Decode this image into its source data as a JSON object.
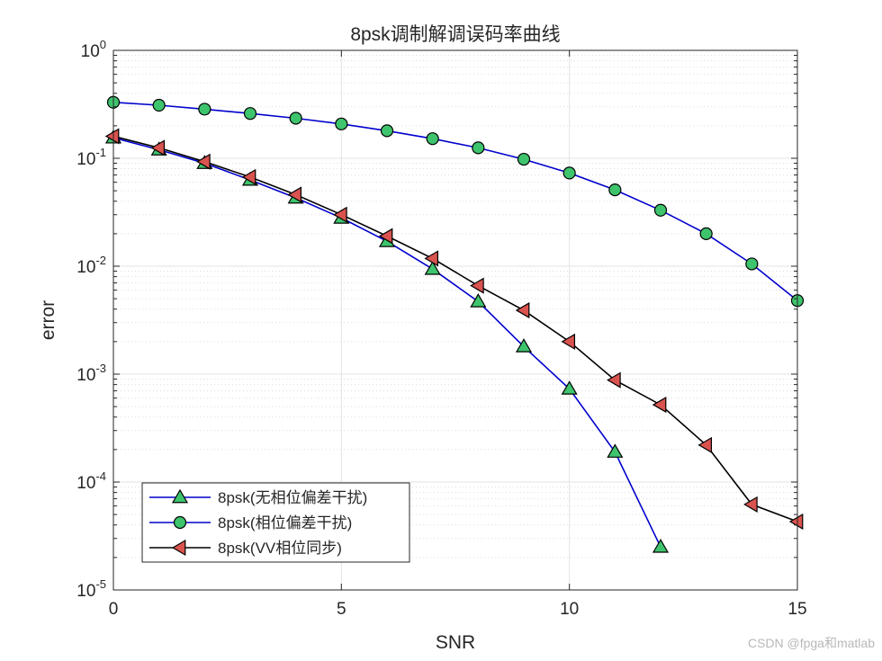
{
  "chart_data": {
    "type": "line",
    "title": "8psk调制解调误码率曲线",
    "xlabel": "SNR",
    "ylabel": "error",
    "xlim": [
      0,
      15
    ],
    "ylim": [
      1e-05,
      1
    ],
    "yscale": "log",
    "xticks": [
      "0",
      "5",
      "10",
      "15"
    ],
    "yticks": [
      {
        "base": "10",
        "exp": "-5"
      },
      {
        "base": "10",
        "exp": "-4"
      },
      {
        "base": "10",
        "exp": "-3"
      },
      {
        "base": "10",
        "exp": "-2"
      },
      {
        "base": "10",
        "exp": "-1"
      },
      {
        "base": "10",
        "exp": "0"
      }
    ],
    "grid": true,
    "legend_position": "bottom-left",
    "series": [
      {
        "name": "8psk(无相位偏差干扰)",
        "color": "#0000cd",
        "marker": "triangle-up",
        "marker_color": "#3ec46d",
        "x": [
          0,
          1,
          2,
          3,
          4,
          5,
          6,
          7,
          8,
          9,
          10,
          11,
          12
        ],
        "values": [
          0.155,
          0.12,
          0.09,
          0.063,
          0.043,
          0.028,
          0.017,
          0.0094,
          0.0047,
          0.0018,
          0.00073,
          0.00019,
          2.5e-05
        ]
      },
      {
        "name": "8psk(相位偏差干扰)",
        "color": "#0000cd",
        "marker": "circle",
        "marker_color": "#3ec46d",
        "x": [
          0,
          1,
          2,
          3,
          4,
          5,
          6,
          7,
          8,
          9,
          10,
          11,
          12,
          13,
          14,
          15
        ],
        "values": [
          0.33,
          0.31,
          0.285,
          0.26,
          0.235,
          0.208,
          0.18,
          0.152,
          0.125,
          0.098,
          0.073,
          0.051,
          0.033,
          0.02,
          0.0105,
          0.0048
        ]
      },
      {
        "name": "8psk(VV相位同步)",
        "color": "#000000",
        "marker": "triangle-left",
        "marker_color": "#d9534f",
        "x": [
          0,
          1,
          2,
          3,
          4,
          5,
          6,
          7,
          8,
          9,
          10,
          11,
          12,
          13,
          14,
          15
        ],
        "values": [
          0.16,
          0.125,
          0.093,
          0.067,
          0.046,
          0.03,
          0.019,
          0.0118,
          0.0066,
          0.0039,
          0.002,
          0.00088,
          0.00052,
          0.00022,
          6.2e-05,
          4.3e-05
        ]
      }
    ]
  },
  "watermark": "CSDN @fpga和matlab"
}
